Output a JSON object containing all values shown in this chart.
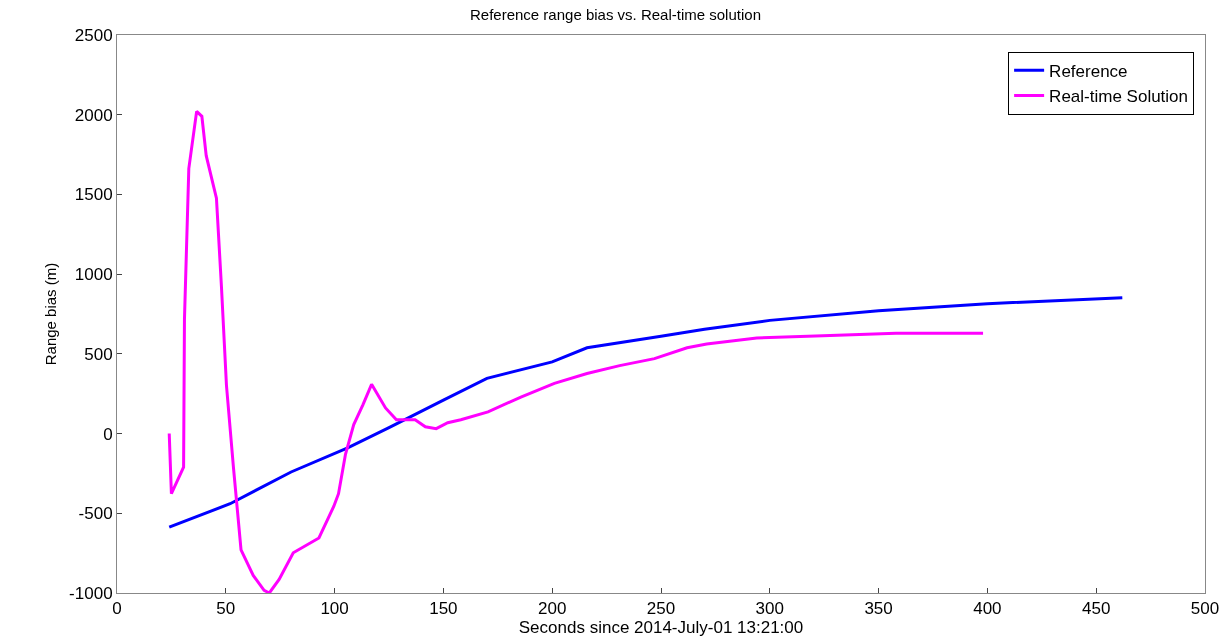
{
  "chart_data": {
    "type": "line",
    "title": "Reference range bias vs. Real-time solution",
    "xlabel": "Seconds since 2014-July-01 13:21:00",
    "ylabel": "Range bias (m)",
    "xlim": [
      0,
      500
    ],
    "xticks": [
      0,
      50,
      100,
      150,
      200,
      250,
      300,
      350,
      400,
      450,
      500
    ],
    "ylim": [
      -1000,
      2500
    ],
    "yticks": [
      -1000,
      -500,
      0,
      500,
      1000,
      1500,
      2000,
      2500
    ],
    "legend": "top right",
    "line_style": "solid",
    "marker": "none",
    "series": [
      {
        "name": "Reference",
        "color": "#0000ff",
        "x": [
          24,
          52,
          80,
          106,
          125,
          150,
          170,
          200,
          216,
          250,
          270,
          300,
          350,
          400,
          462
        ],
        "values": [
          -587,
          -440,
          -241,
          -90,
          37,
          210,
          346,
          450,
          538,
          610,
          655,
          710,
          770,
          815,
          852
        ]
      },
      {
        "name": "Real-time Solution",
        "color": "#ff00ff",
        "x": [
          24,
          25,
          30.6,
          31,
          33,
          36.6,
          39,
          41,
          45.7,
          48,
          50.3,
          53.5,
          57,
          62.6,
          67.6,
          70,
          74.5,
          81,
          92.8,
          99.6,
          101.8,
          105,
          108.8,
          113,
          117,
          123.4,
          128.4,
          137,
          141.7,
          146.7,
          152,
          158,
          170.5,
          185.6,
          201,
          216,
          231,
          247,
          262,
          271,
          294,
          321,
          358,
          398
        ],
        "values": [
          0,
          -377,
          -210,
          717,
          1662,
          2021,
          1990,
          1743,
          1477,
          921,
          303,
          -210,
          -729,
          -890,
          -983,
          -1000,
          -915,
          -748,
          -655,
          -457,
          -377,
          -130,
          56,
          180,
          309,
          161,
          87,
          87,
          43,
          31,
          68,
          87,
          136,
          229,
          315,
          377,
          426,
          470,
          538,
          562,
          600,
          612,
          630,
          630
        ]
      }
    ]
  }
}
